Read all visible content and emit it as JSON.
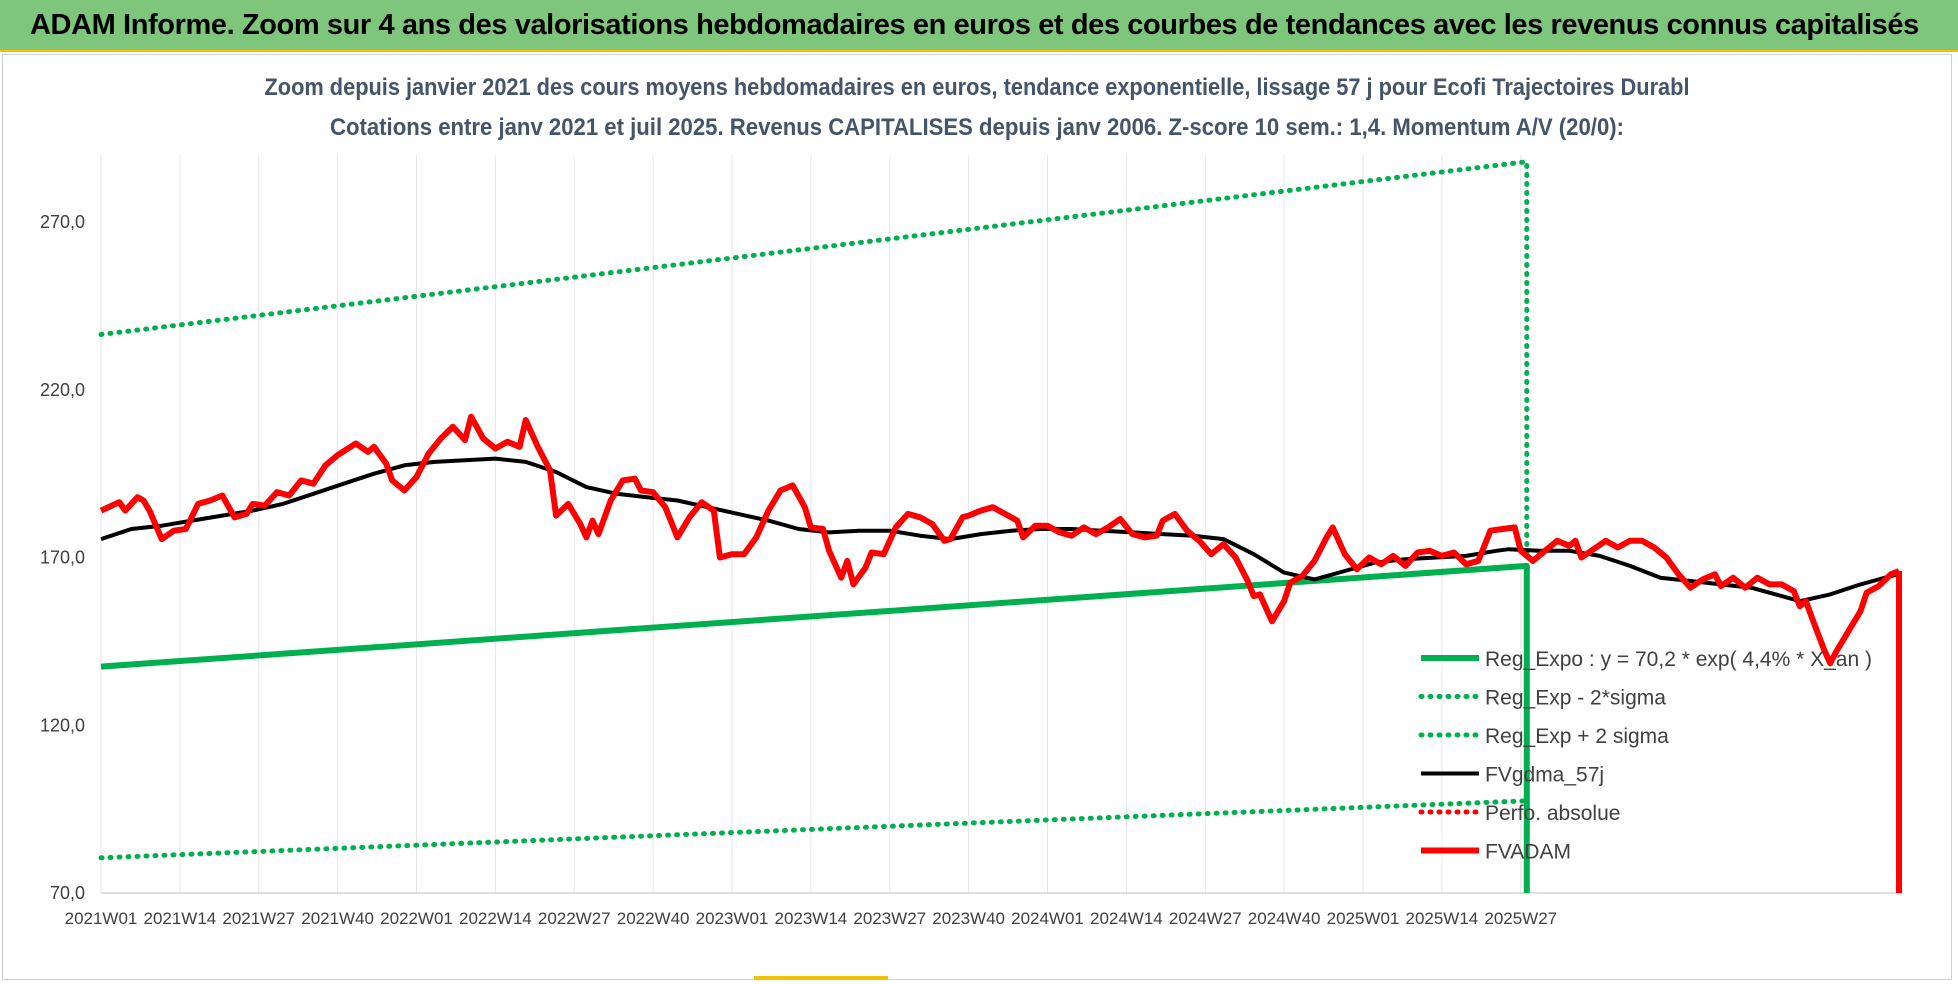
{
  "banner": {
    "title": "ADAM Informe. Zoom sur 4 ans des valorisations hebdomadaires en euros et des courbes de tendances avec les revenus connus capitalisés"
  },
  "colors": {
    "banner_bg": "#7dc67b",
    "accent": "#f2c200",
    "trend": "#00b050",
    "fvadam": "#ff0000",
    "fvgdma": "#000000"
  },
  "chart_data": {
    "type": "line",
    "title": "Zoom depuis janvier 2021 des cours moyens hebdomadaires en euros, tendance exponentielle, lissage 57 j pour Ecofi Trajectoires Durabl",
    "subtitle": "Cotations entre janv 2021 et juil 2025. Revenus CAPITALISES depuis janv 2006. Z-score 10 sem.: 1,4. Momentum A/V (20/0):",
    "xlabel": "",
    "ylabel": "",
    "ylim": [
      70,
      290
    ],
    "y_ticks": [
      "70,0",
      "120,0",
      "170,0",
      "220,0",
      "270,0"
    ],
    "y_tick_values": [
      70,
      120,
      170,
      220,
      270
    ],
    "x_tick_labels": [
      "2021W01",
      "2021W14",
      "2021W27",
      "2021W40",
      "2022W01",
      "2022W14",
      "2022W27",
      "2022W40",
      "2023W01",
      "2023W14",
      "2023W27",
      "2023W40",
      "2024W01",
      "2024W14",
      "2024W27",
      "2024W40",
      "2025W01",
      "2025W14",
      "2025W27"
    ],
    "week_count": 236,
    "grid": "vertical",
    "legend_position": "bottom-right",
    "series": [
      {
        "name": "Reg_Expo : y = 70,2 * exp( 4,4% * X_an )",
        "style": "solid-thick",
        "color": "#00b050",
        "points": [
          [
            0,
            137.5
          ],
          [
            235,
            167.5
          ]
        ],
        "drop_to": 70
      },
      {
        "name": "Reg_Exp - 2*sigma",
        "style": "dotted",
        "color": "#00b050",
        "points": [
          [
            0,
            80.5
          ],
          [
            235,
            97.5
          ]
        ]
      },
      {
        "name": "Reg_Exp + 2 sigma",
        "style": "dotted",
        "color": "#00b050",
        "points": [
          [
            0,
            236.5
          ],
          [
            235,
            288
          ]
        ],
        "drop_to": 170
      },
      {
        "name": "FVgdma_57j",
        "style": "solid",
        "color": "#000000",
        "points": [
          [
            0,
            175.5
          ],
          [
            5,
            178.5
          ],
          [
            10,
            179.5
          ],
          [
            15,
            181
          ],
          [
            20,
            182.5
          ],
          [
            25,
            184
          ],
          [
            30,
            186
          ],
          [
            35,
            189
          ],
          [
            40,
            192
          ],
          [
            45,
            195
          ],
          [
            50,
            197.5
          ],
          [
            55,
            198.5
          ],
          [
            60,
            199
          ],
          [
            65,
            199.5
          ],
          [
            70,
            198.5
          ],
          [
            75,
            195.5
          ],
          [
            80,
            191
          ],
          [
            85,
            189
          ],
          [
            90,
            188
          ],
          [
            95,
            187
          ],
          [
            100,
            185
          ],
          [
            105,
            183
          ],
          [
            110,
            181
          ],
          [
            115,
            178.5
          ],
          [
            120,
            177.5
          ],
          [
            125,
            178
          ],
          [
            130,
            178
          ],
          [
            135,
            176.5
          ],
          [
            140,
            175.5
          ],
          [
            145,
            177
          ],
          [
            150,
            178
          ],
          [
            155,
            178.5
          ],
          [
            160,
            178.5
          ],
          [
            165,
            178
          ],
          [
            170,
            177.5
          ],
          [
            175,
            177
          ],
          [
            180,
            176.5
          ],
          [
            185,
            175.5
          ],
          [
            190,
            171
          ],
          [
            195,
            165.5
          ],
          [
            200,
            163.5
          ],
          [
            205,
            166
          ],
          [
            210,
            168.5
          ],
          [
            215,
            169.5
          ],
          [
            220,
            170
          ],
          [
            225,
            170.5
          ],
          [
            230,
            172
          ],
          [
            232,
            172.5
          ],
          [
            237,
            172
          ],
          [
            242,
            172
          ],
          [
            247,
            170.5
          ],
          [
            252,
            167.5
          ],
          [
            257,
            164
          ],
          [
            262,
            163
          ],
          [
            267,
            162
          ],
          [
            272,
            161
          ],
          [
            277,
            158.5
          ],
          [
            280,
            157
          ],
          [
            285,
            159
          ],
          [
            290,
            162
          ],
          [
            295,
            164.5
          ],
          [
            297,
            165
          ]
        ]
      },
      {
        "name": "Perfo. absolue",
        "style": "dotted",
        "color": "#ff0000",
        "points": []
      },
      {
        "name": "FVADAM",
        "style": "solid-thick",
        "color": "#ff0000",
        "points": [
          [
            0,
            184
          ],
          [
            3,
            186.5
          ],
          [
            4,
            184
          ],
          [
            6,
            188
          ],
          [
            7,
            187
          ],
          [
            8,
            184
          ],
          [
            10,
            175.5
          ],
          [
            12,
            178
          ],
          [
            14,
            178.5
          ],
          [
            16,
            186
          ],
          [
            18,
            187
          ],
          [
            20,
            188.5
          ],
          [
            22,
            182
          ],
          [
            24,
            183
          ],
          [
            25,
            186
          ],
          [
            27,
            185.5
          ],
          [
            29,
            189.5
          ],
          [
            31,
            188.5
          ],
          [
            33,
            193
          ],
          [
            35,
            192
          ],
          [
            37,
            197.5
          ],
          [
            39,
            200.5
          ],
          [
            42,
            204
          ],
          [
            44,
            201.5
          ],
          [
            45,
            203
          ],
          [
            47,
            198
          ],
          [
            48,
            193
          ],
          [
            50,
            190
          ],
          [
            52,
            194
          ],
          [
            54,
            201
          ],
          [
            56,
            205.5
          ],
          [
            58,
            209
          ],
          [
            60,
            205
          ],
          [
            61,
            212
          ],
          [
            63,
            205.5
          ],
          [
            65,
            202.5
          ],
          [
            67,
            204.5
          ],
          [
            69,
            203
          ],
          [
            70,
            211
          ],
          [
            72,
            203
          ],
          [
            74,
            196
          ],
          [
            75,
            182.5
          ],
          [
            77,
            186
          ],
          [
            79,
            180
          ],
          [
            80,
            176
          ],
          [
            81,
            181
          ],
          [
            82,
            177
          ],
          [
            84,
            187
          ],
          [
            86,
            193
          ],
          [
            88,
            193.5
          ],
          [
            89,
            190
          ],
          [
            91,
            189.5
          ],
          [
            93,
            185
          ],
          [
            95,
            176
          ],
          [
            97,
            182
          ],
          [
            99,
            186.5
          ],
          [
            101,
            184
          ],
          [
            102,
            170
          ],
          [
            104,
            171
          ],
          [
            106,
            171
          ],
          [
            108,
            176
          ],
          [
            110,
            184
          ],
          [
            112,
            190
          ],
          [
            114,
            191.5
          ],
          [
            116,
            185
          ],
          [
            117,
            179
          ],
          [
            119,
            178.5
          ],
          [
            120,
            172
          ],
          [
            122,
            164
          ],
          [
            123,
            169
          ],
          [
            124,
            162
          ],
          [
            126,
            167
          ],
          [
            127,
            171.5
          ],
          [
            129,
            171
          ],
          [
            131,
            179
          ],
          [
            133,
            183
          ],
          [
            135,
            182
          ],
          [
            137,
            180
          ],
          [
            139,
            175
          ],
          [
            140,
            175.5
          ],
          [
            142,
            182
          ],
          [
            143,
            182.5
          ],
          [
            145,
            184
          ],
          [
            147,
            185
          ],
          [
            149,
            183
          ],
          [
            151,
            181
          ],
          [
            152,
            176
          ],
          [
            154,
            179.5
          ],
          [
            156,
            179.5
          ],
          [
            158,
            177.5
          ],
          [
            160,
            176.5
          ],
          [
            162,
            179
          ],
          [
            164,
            177
          ],
          [
            166,
            179
          ],
          [
            168,
            181.5
          ],
          [
            170,
            177
          ],
          [
            172,
            176
          ],
          [
            174,
            176.5
          ],
          [
            175,
            181
          ],
          [
            177,
            183
          ],
          [
            179,
            178
          ],
          [
            181,
            175
          ],
          [
            183,
            171
          ],
          [
            185,
            174
          ],
          [
            187,
            170
          ],
          [
            189,
            163
          ],
          [
            190,
            158.5
          ],
          [
            191,
            159
          ],
          [
            192,
            155
          ],
          [
            193,
            151
          ],
          [
            195,
            157
          ],
          [
            196,
            162.5
          ],
          [
            198,
            164.5
          ],
          [
            200,
            169
          ],
          [
            202,
            176
          ],
          [
            203,
            179
          ],
          [
            205,
            171
          ],
          [
            207,
            166.5
          ],
          [
            209,
            170
          ],
          [
            211,
            168
          ],
          [
            213,
            170.5
          ],
          [
            215,
            167.5
          ],
          [
            217,
            171.5
          ],
          [
            219,
            172
          ],
          [
            221,
            170.5
          ],
          [
            223,
            171.5
          ],
          [
            225,
            168
          ],
          [
            227,
            169
          ],
          [
            229,
            178
          ],
          [
            231,
            178.5
          ],
          [
            233,
            179
          ],
          [
            234,
            172
          ],
          [
            236,
            169
          ],
          [
            238,
            172
          ],
          [
            240,
            175
          ],
          [
            242,
            173.5
          ],
          [
            243,
            175
          ],
          [
            244,
            170
          ],
          [
            246,
            172.5
          ],
          [
            248,
            175
          ],
          [
            250,
            173
          ],
          [
            252,
            175
          ],
          [
            254,
            175
          ],
          [
            256,
            173
          ],
          [
            258,
            170
          ],
          [
            260,
            165
          ],
          [
            262,
            161
          ],
          [
            264,
            163.5
          ],
          [
            266,
            165
          ],
          [
            267,
            161.5
          ],
          [
            269,
            164
          ],
          [
            271,
            161
          ],
          [
            273,
            164
          ],
          [
            275,
            162
          ],
          [
            277,
            162
          ],
          [
            279,
            160
          ],
          [
            280,
            155.5
          ],
          [
            281,
            157
          ],
          [
            282,
            152
          ],
          [
            284,
            142.5
          ],
          [
            285,
            138.5
          ],
          [
            286,
            142
          ],
          [
            288,
            148
          ],
          [
            290,
            154
          ],
          [
            291,
            159.5
          ],
          [
            293,
            161.5
          ],
          [
            295,
            165
          ],
          [
            297,
            166
          ]
        ]
      }
    ]
  }
}
